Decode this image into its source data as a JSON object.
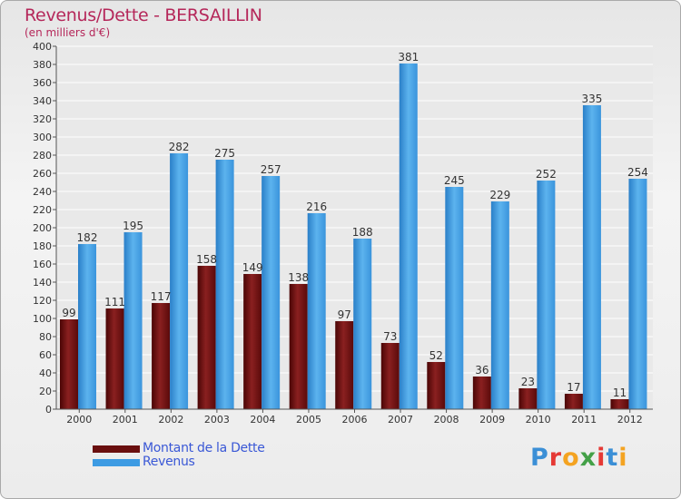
{
  "title": "Revenus/Dette - BERSAILLIN",
  "subtitle": "(en milliers d'€)",
  "colors": {
    "dette": "#7a1515",
    "revenus": "#3d9be3",
    "title": "#b5275a",
    "legend_text": "#3a58d6"
  },
  "legend": [
    {
      "label": "Montant de la Dette",
      "color": "#7a1515"
    },
    {
      "label": "Revenus",
      "color": "#3d9be3"
    }
  ],
  "logo": {
    "letters": [
      "P",
      "r",
      "o",
      "x",
      "i",
      "t",
      "i"
    ],
    "colors": [
      "#3b8fd6",
      "#e53935",
      "#f4a321",
      "#43a047",
      "#e53935",
      "#3b8fd6",
      "#f4a321"
    ]
  },
  "chart_data": {
    "type": "bar",
    "categories": [
      "2000",
      "2001",
      "2002",
      "2003",
      "2004",
      "2005",
      "2006",
      "2007",
      "2008",
      "2009",
      "2010",
      "2011",
      "2012"
    ],
    "series": [
      {
        "name": "Montant de la Dette",
        "values": [
          99,
          111,
          117,
          158,
          149,
          138,
          97,
          73,
          52,
          36,
          23,
          17,
          11
        ]
      },
      {
        "name": "Revenus",
        "values": [
          182,
          195,
          282,
          275,
          257,
          216,
          188,
          381,
          245,
          229,
          252,
          335,
          254
        ]
      }
    ],
    "ylim": [
      0,
      400
    ],
    "ytick_step": 20,
    "grid": true
  }
}
